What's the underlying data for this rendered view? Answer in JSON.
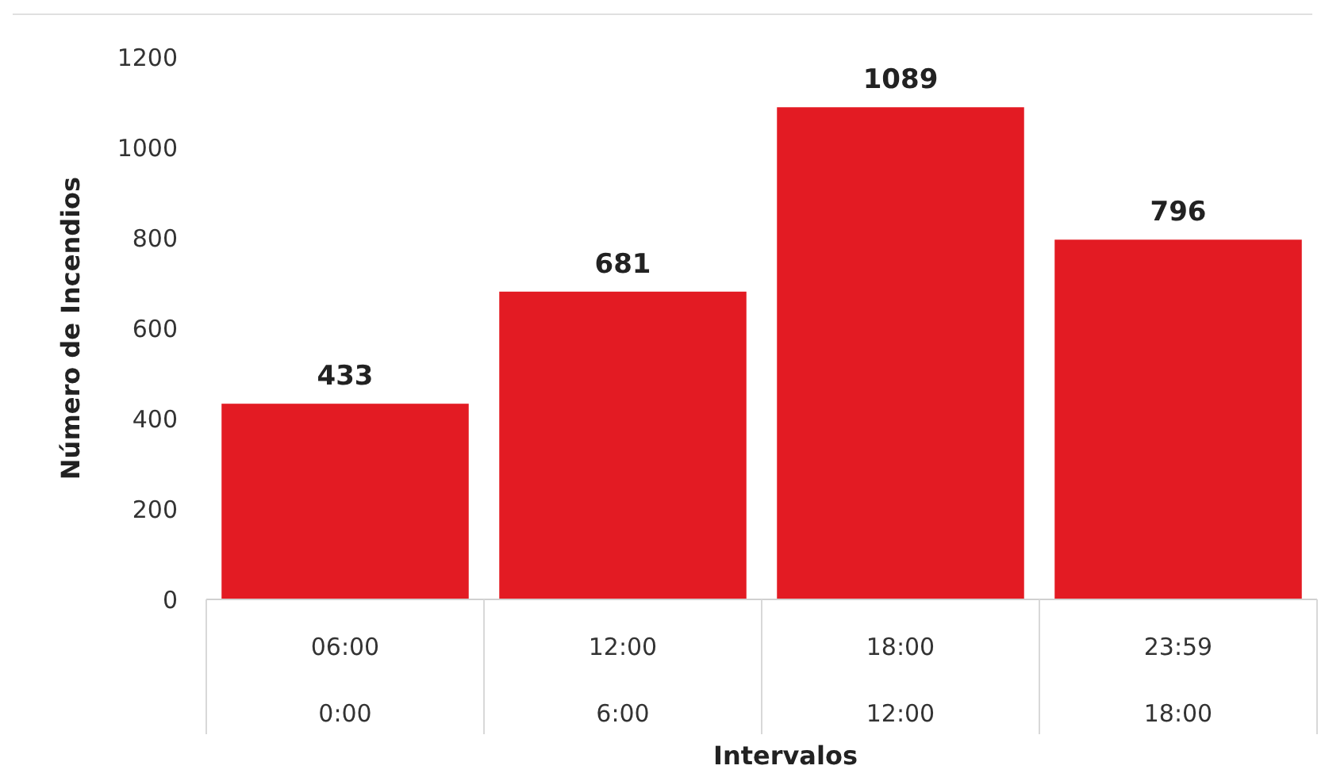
{
  "chart_data": {
    "type": "bar",
    "xlabel": "Intervalos",
    "ylabel": "Número de Incendios",
    "categories": [
      "06:00\n0:00",
      "12:00\n6:00",
      "18:00\n12:00",
      "23:59\n18:00"
    ],
    "values": [
      433,
      681,
      1089,
      796
    ],
    "color": "#e31b23",
    "ylim": [
      0,
      1200
    ],
    "yticks": [
      0,
      200,
      400,
      600,
      800,
      1000,
      1200
    ],
    "data_labels": true,
    "grid": false
  }
}
